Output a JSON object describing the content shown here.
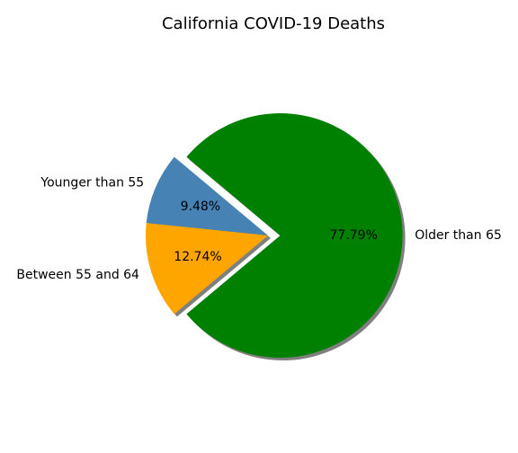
{
  "chart_data": {
    "type": "pie",
    "title": "California COVID-19 Deaths",
    "slices": [
      {
        "label": "Younger than 55",
        "value": 9.48,
        "pct_label": "9.48%",
        "color": "#4682b4",
        "exploded": false
      },
      {
        "label": "Between 55 and 64",
        "value": 12.74,
        "pct_label": "12.74%",
        "color": "#ffa500",
        "exploded": false
      },
      {
        "label": "Older than 65",
        "value": 77.79,
        "pct_label": "77.79%",
        "color": "#008000",
        "exploded": true
      }
    ],
    "start_angle": 140,
    "direction": "counterclockwise",
    "shadow": true
  }
}
